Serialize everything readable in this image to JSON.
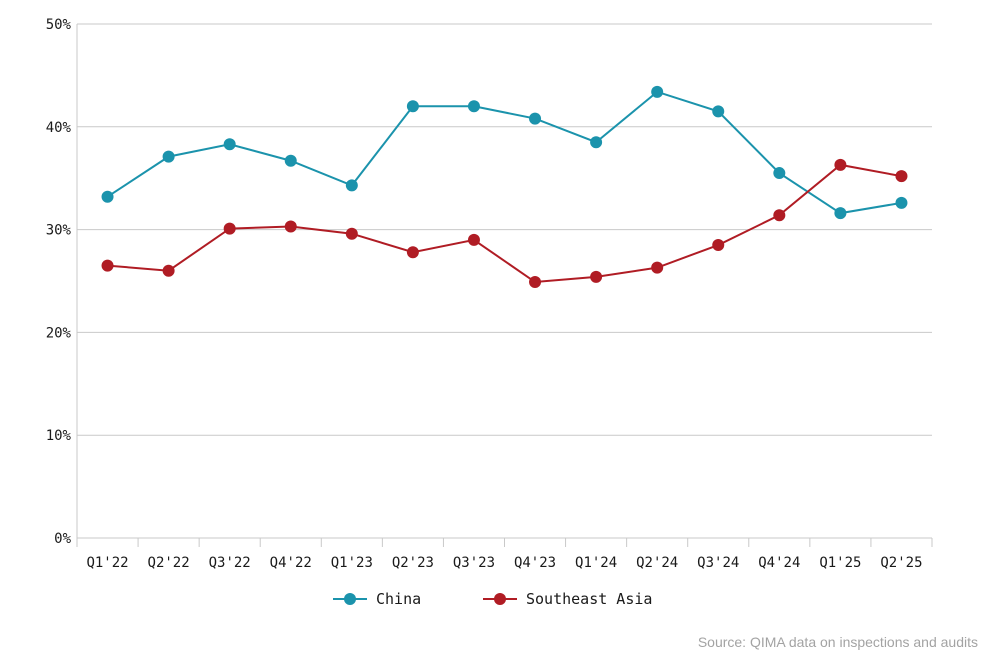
{
  "chart_data": {
    "type": "line",
    "categories": [
      "Q1'22",
      "Q2'22",
      "Q3'22",
      "Q4'22",
      "Q1'23",
      "Q2'23",
      "Q3'23",
      "Q4'23",
      "Q1'24",
      "Q2'24",
      "Q3'24",
      "Q4'24",
      "Q1'25",
      "Q2'25"
    ],
    "series": [
      {
        "name": "China",
        "color": "#1b93ac",
        "values": [
          33.2,
          37.1,
          38.3,
          36.7,
          34.3,
          42.0,
          42.0,
          40.8,
          38.5,
          43.4,
          41.5,
          35.5,
          31.6,
          32.6
        ]
      },
      {
        "name": "Southeast Asia",
        "color": "#b01c24",
        "values": [
          26.5,
          26.0,
          30.1,
          30.3,
          29.6,
          27.8,
          29.0,
          24.9,
          25.4,
          26.3,
          28.5,
          31.4,
          36.3,
          35.2
        ]
      }
    ],
    "ylim": [
      0,
      50
    ],
    "yticks": [
      0,
      10,
      20,
      30,
      40,
      50
    ],
    "ytick_labels": [
      "0%",
      "10%",
      "20%",
      "30%",
      "40%",
      "50%"
    ],
    "grid": true,
    "legend_position": "bottom-center"
  },
  "source": "Source: QIMA data on inspections and audits"
}
